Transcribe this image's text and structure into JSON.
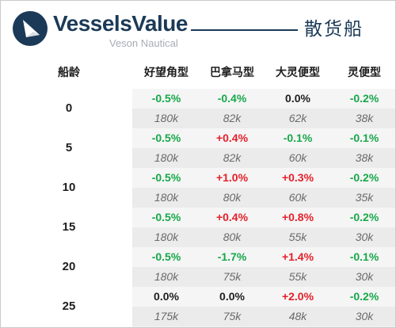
{
  "header": {
    "brand": "VesselsValue",
    "brand_sub": "Veson Nautical",
    "segment": "散货船",
    "logo_icon": "vesselsvalue-logo-icon"
  },
  "table": {
    "age_header": "船龄",
    "columns": [
      "好望角型",
      "巴拿马型",
      "大灵便型",
      "灵便型"
    ],
    "rows": [
      {
        "age": "0",
        "changes": [
          "-0.5%",
          "-0.4%",
          "0.0%",
          "-0.2%"
        ],
        "prices": [
          "180k",
          "82k",
          "62k",
          "38k"
        ]
      },
      {
        "age": "5",
        "changes": [
          "-0.5%",
          "+0.4%",
          "-0.1%",
          "-0.1%"
        ],
        "prices": [
          "180k",
          "82k",
          "60k",
          "38k"
        ]
      },
      {
        "age": "10",
        "changes": [
          "-0.5%",
          "+1.0%",
          "+0.3%",
          "-0.2%"
        ],
        "prices": [
          "180k",
          "80k",
          "60k",
          "35k"
        ]
      },
      {
        "age": "15",
        "changes": [
          "-0.5%",
          "+0.4%",
          "+0.8%",
          "-0.2%"
        ],
        "prices": [
          "180k",
          "80k",
          "55k",
          "30k"
        ]
      },
      {
        "age": "20",
        "changes": [
          "-0.5%",
          "-1.7%",
          "+1.4%",
          "-0.1%"
        ],
        "prices": [
          "180k",
          "75k",
          "55k",
          "30k"
        ]
      },
      {
        "age": "25",
        "changes": [
          "0.0%",
          "0.0%",
          "+2.0%",
          "-0.2%"
        ],
        "prices": [
          "175k",
          "75k",
          "48k",
          "30k"
        ]
      }
    ]
  },
  "colors": {
    "negative": "#17a84a",
    "positive": "#e5202a",
    "neutral": "#1e1e1e",
    "brand": "#1b3a57"
  }
}
